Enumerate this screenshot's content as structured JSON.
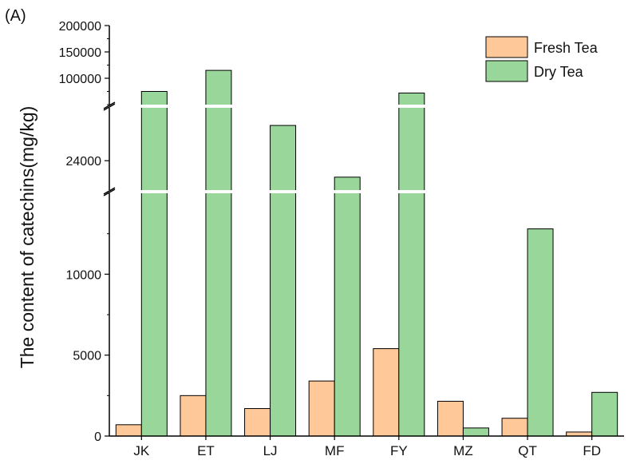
{
  "chart_data": {
    "type": "bar",
    "panel_label": "(A)",
    "ylabel": "The content of catechins(mg/kg)",
    "xlabel": "",
    "categories": [
      "JK",
      "ET",
      "LJ",
      "MF",
      "FY",
      "MZ",
      "QT",
      "FD"
    ],
    "series": [
      {
        "name": "Fresh Tea",
        "color": "#FFC899",
        "values": [
          700,
          2500,
          1700,
          3400,
          5400,
          2150,
          1100,
          250
        ]
      },
      {
        "name": "Dry Tea",
        "color": "#99D699",
        "values": [
          75000,
          115000,
          27000,
          22600,
          72000,
          500,
          12800,
          2700
        ]
      }
    ],
    "y_axis_segments": [
      {
        "range": [
          0,
          15000
        ],
        "ticks": [
          0,
          5000,
          10000
        ],
        "tick_labels": [
          "0",
          "5000",
          "10000"
        ]
      },
      {
        "range": [
          21500,
          28500
        ],
        "ticks": [
          24000
        ],
        "tick_labels": [
          "24000"
        ]
      },
      {
        "range": [
          50000,
          200000
        ],
        "ticks": [
          100000,
          150000,
          200000
        ],
        "tick_labels": [
          "100000",
          "150000",
          "200000"
        ]
      }
    ],
    "axis_breaks": [
      15000,
      50000
    ],
    "legend_position": "top-right",
    "grid": false
  }
}
